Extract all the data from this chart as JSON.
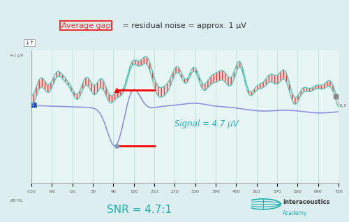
{
  "background_color": "#ddeef0",
  "plot_bg_color": "#e8f5f5",
  "annotation_title_color": "#333333",
  "avg_gap_box_color": "#ee3333",
  "avg_gap_text": "Average gap",
  "rest_title": " = residual noise = approx. 1 μV",
  "signal_text": "Signal = 4.7 μV",
  "signal_text_color": "#20b0b0",
  "snr_text": "SNR = 4.7:1",
  "snr_color": "#20b0b0",
  "xlabel": "dB HL",
  "ylabel": "+1 μV",
  "xlim": [
    -150,
    750
  ],
  "xticks": [
    -150,
    -90,
    -30,
    30,
    90,
    150,
    210,
    270,
    330,
    390,
    450,
    510,
    570,
    630,
    690,
    750
  ],
  "noise_line_color": "#55ccbb",
  "noise_fill_color": "#ee3333",
  "signal_line_color": "#9090dd",
  "blue_label_bg": "#1144bb",
  "interacoustics_color": "#20b0b0",
  "grid_color": "#b8d8d8",
  "right_label": "11.8"
}
